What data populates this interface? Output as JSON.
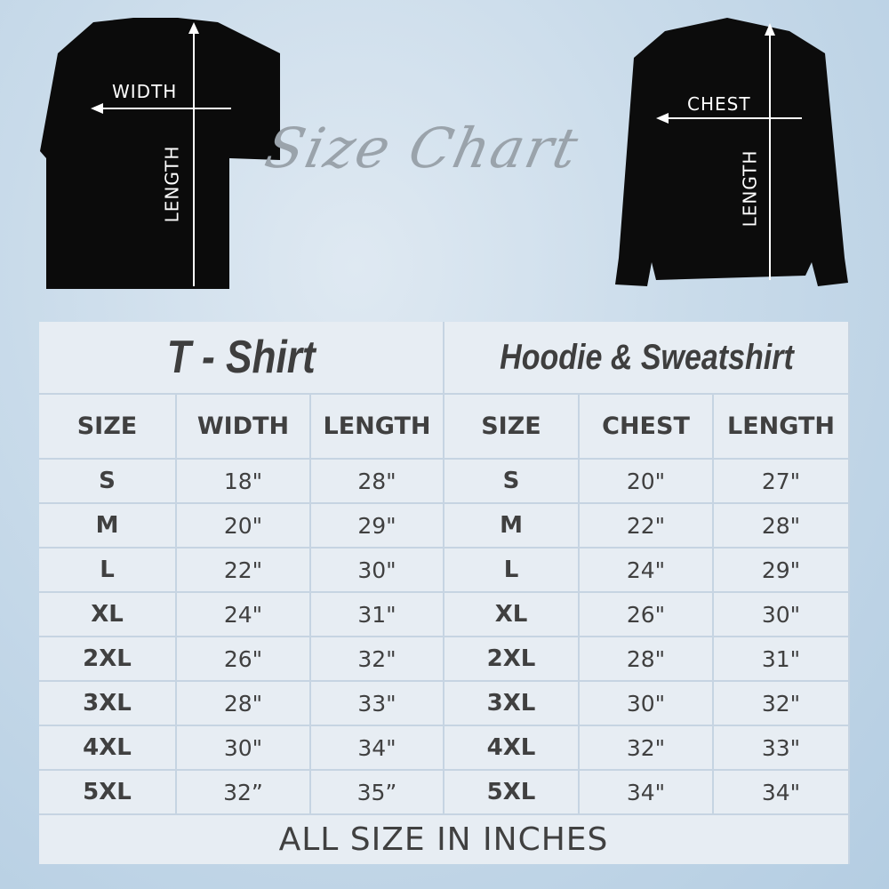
{
  "title": "Size Chart",
  "tshirt": {
    "label": "T - Shirt",
    "width_label": "WIDTH",
    "length_label": "LENGTH",
    "headers": [
      "SIZE",
      "WIDTH",
      "LENGTH"
    ]
  },
  "hoodie": {
    "label": "Hoodie & Sweatshirt",
    "chest_label": "CHEST",
    "length_label": "LENGTH",
    "headers": [
      "SIZE",
      "CHEST",
      "LENGTH"
    ]
  },
  "rows": [
    [
      "S",
      "18\"",
      "28\"",
      "S",
      "20\"",
      "27\""
    ],
    [
      "M",
      "20\"",
      "29\"",
      "M",
      "22\"",
      "28\""
    ],
    [
      "L",
      "22\"",
      "30\"",
      "L",
      "24\"",
      "29\""
    ],
    [
      "XL",
      "24\"",
      "31\"",
      "XL",
      "26\"",
      "30\""
    ],
    [
      "2XL",
      "26\"",
      "32\"",
      "2XL",
      "28\"",
      "31\""
    ],
    [
      "3XL",
      "28\"",
      "33\"",
      "3XL",
      "30\"",
      "32\""
    ],
    [
      "4XL",
      "30\"",
      "34\"",
      "4XL",
      "32\"",
      "33\""
    ],
    [
      "5XL",
      "32”",
      "35”",
      "5XL",
      "34\"",
      "34\""
    ]
  ],
  "footer": "ALL SIZE IN INCHES"
}
